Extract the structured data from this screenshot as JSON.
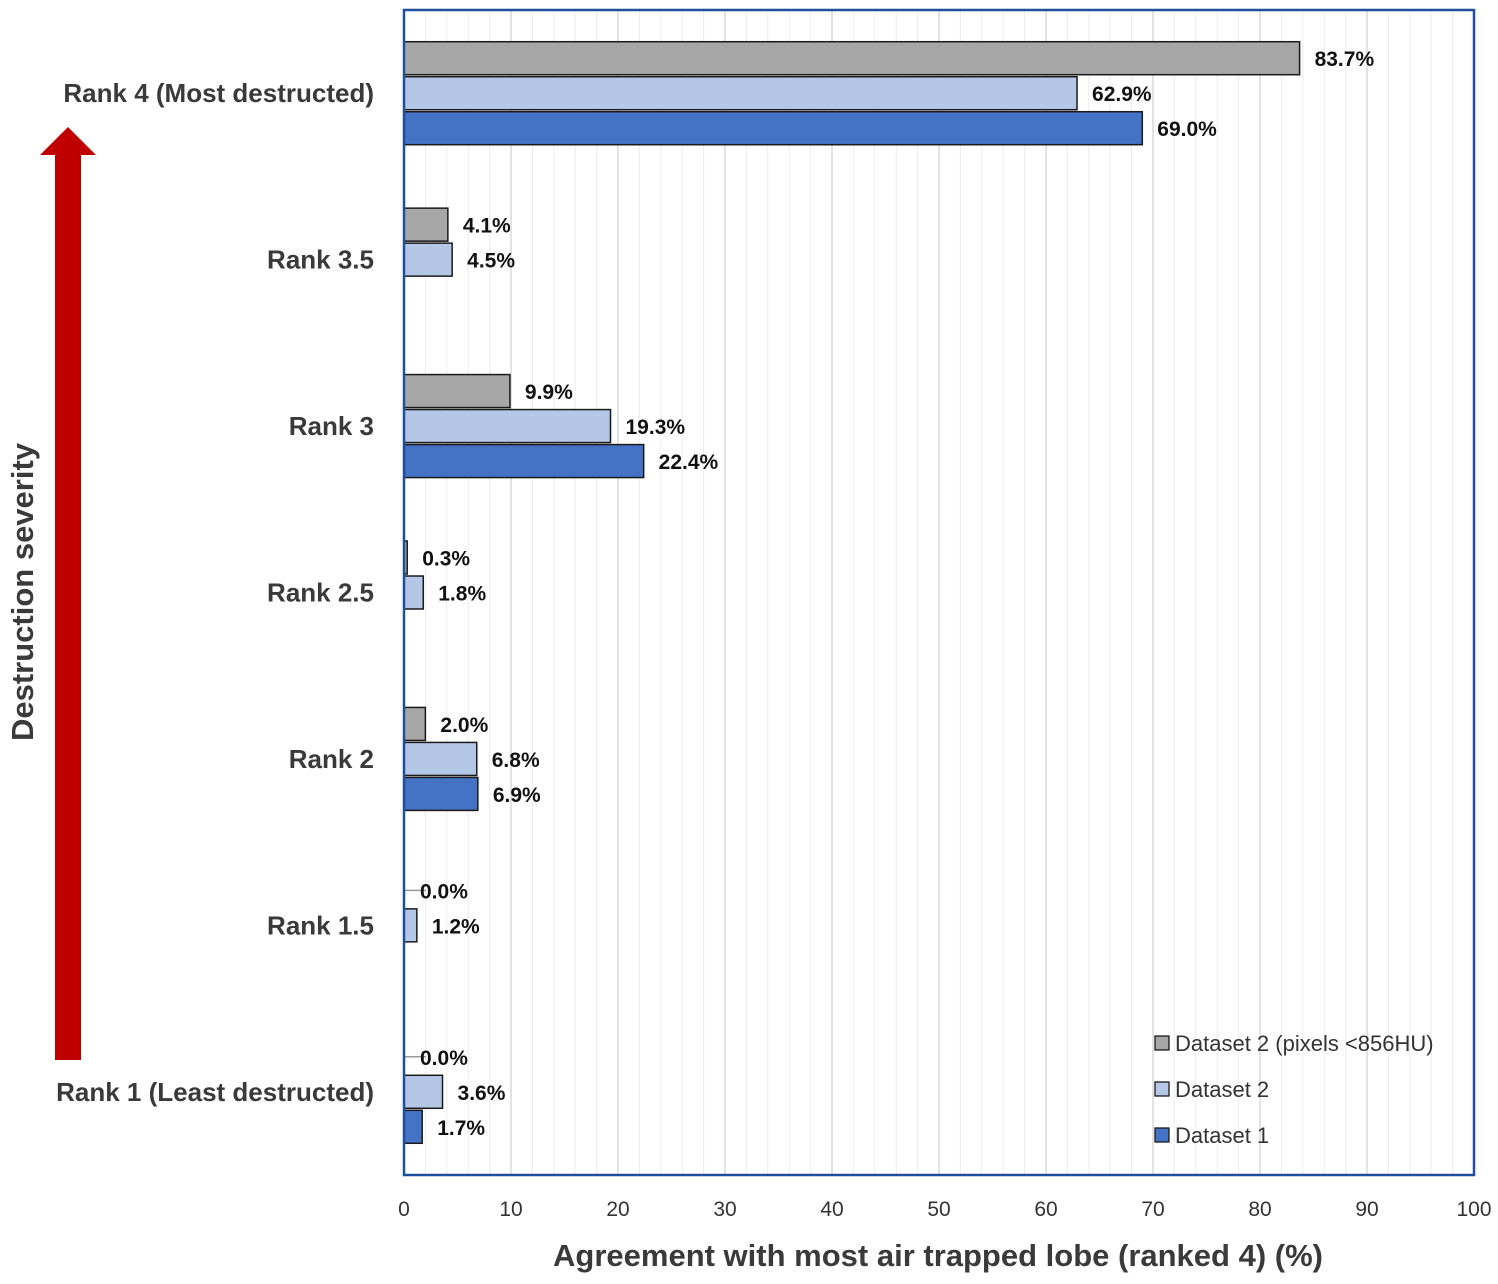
{
  "chart_data": {
    "type": "bar",
    "orientation": "horizontal",
    "categories": [
      "Rank 1 (Least destructed)",
      "Rank 1.5",
      "Rank 2",
      "Rank 2.5",
      "Rank 3",
      "Rank 3.5",
      "Rank 4 (Most destructed)"
    ],
    "series": [
      {
        "name": "Dataset 2 (pixels <856HU)",
        "color": "#a6a6a6",
        "values": [
          0.0,
          0.0,
          2.0,
          0.3,
          9.9,
          4.1,
          83.7
        ],
        "labels": [
          "0.0%",
          "0.0%",
          "2.0%",
          "0.3%",
          "9.9%",
          "4.1%",
          "83.7%"
        ]
      },
      {
        "name": "Dataset 2",
        "color": "#b4c7e7",
        "values": [
          3.6,
          1.2,
          6.8,
          1.8,
          19.3,
          4.5,
          62.9
        ],
        "labels": [
          "3.6%",
          "1.2%",
          "6.8%",
          "1.8%",
          "19.3%",
          "4.5%",
          "62.9%"
        ]
      },
      {
        "name": "Dataset 1",
        "color": "#4472c4",
        "values": [
          1.7,
          null,
          6.9,
          null,
          22.4,
          null,
          69.0
        ],
        "labels": [
          "1.7%",
          "",
          "6.9%",
          "",
          "22.4%",
          "",
          "69.0%"
        ]
      }
    ],
    "xlabel": "Agreement with most air trapped lobe (ranked 4) (%)",
    "ylabel": "Destruction severity",
    "xlim": [
      0,
      100
    ],
    "xticks": [
      "0",
      "10",
      "20",
      "30",
      "40",
      "50",
      "60",
      "70",
      "80",
      "90",
      "100"
    ],
    "grid": true,
    "legend_position": "bottom-right",
    "colors": {
      "arrow": "#c00000",
      "frame": "#1f4e9c",
      "grid": "#d9d9d9"
    }
  }
}
